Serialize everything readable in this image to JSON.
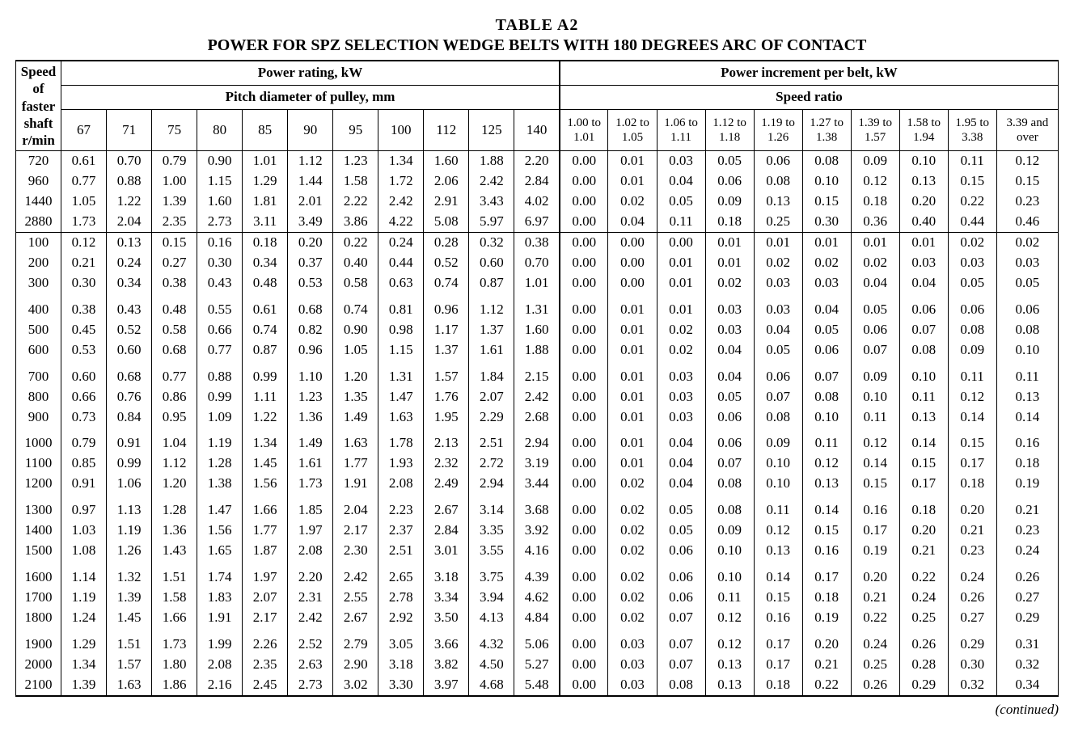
{
  "title": "TABLE   A2",
  "subtitle": "POWER FOR SPZ SELECTION WEDGE BELTS WITH 180 DEGREES ARC OF CONTACT",
  "continued": "(continued)",
  "headers": {
    "speed": "Speed of faster shaft r/min",
    "power_rating": "Power rating, kW",
    "pitch_diameter": "Pitch diameter of pulley, mm",
    "power_increment": "Power increment per belt, kW",
    "speed_ratio": "Speed ratio",
    "pd_cols": [
      "67",
      "71",
      "75",
      "80",
      "85",
      "90",
      "95",
      "100",
      "112",
      "125",
      "140"
    ],
    "ratio_cols": [
      "1.00 to 1.01",
      "1.02 to 1.05",
      "1.06 to 1.11",
      "1.12 to 1.18",
      "1.19 to 1.26",
      "1.27 to 1.38",
      "1.39 to 1.57",
      "1.58 to 1.94",
      "1.95 to 3.38",
      "3.39 and over"
    ]
  },
  "blocks": [
    {
      "section_top": true,
      "rows": [
        {
          "rpm": "720",
          "pd": [
            "0.61",
            "0.70",
            "0.79",
            "0.90",
            "1.01",
            "1.12",
            "1.23",
            "1.34",
            "1.60",
            "1.88",
            "2.20"
          ],
          "inc": [
            "0.00",
            "0.01",
            "0.03",
            "0.05",
            "0.06",
            "0.08",
            "0.09",
            "0.10",
            "0.11",
            "0.12"
          ]
        },
        {
          "rpm": "960",
          "pd": [
            "0.77",
            "0.88",
            "1.00",
            "1.15",
            "1.29",
            "1.44",
            "1.58",
            "1.72",
            "2.06",
            "2.42",
            "2.84"
          ],
          "inc": [
            "0.00",
            "0.01",
            "0.04",
            "0.06",
            "0.08",
            "0.10",
            "0.12",
            "0.13",
            "0.15",
            "0.15"
          ]
        },
        {
          "rpm": "1440",
          "pd": [
            "1.05",
            "1.22",
            "1.39",
            "1.60",
            "1.81",
            "2.01",
            "2.22",
            "2.42",
            "2.91",
            "3.43",
            "4.02"
          ],
          "inc": [
            "0.00",
            "0.02",
            "0.05",
            "0.09",
            "0.13",
            "0.15",
            "0.18",
            "0.20",
            "0.22",
            "0.23"
          ]
        },
        {
          "rpm": "2880",
          "pd": [
            "1.73",
            "2.04",
            "2.35",
            "2.73",
            "3.11",
            "3.49",
            "3.86",
            "4.22",
            "5.08",
            "5.97",
            "6.97"
          ],
          "inc": [
            "0.00",
            "0.04",
            "0.11",
            "0.18",
            "0.25",
            "0.30",
            "0.36",
            "0.40",
            "0.44",
            "0.46"
          ]
        }
      ]
    },
    {
      "section_top": true,
      "rows": [
        {
          "rpm": "100",
          "pd": [
            "0.12",
            "0.13",
            "0.15",
            "0.16",
            "0.18",
            "0.20",
            "0.22",
            "0.24",
            "0.28",
            "0.32",
            "0.38"
          ],
          "inc": [
            "0.00",
            "0.00",
            "0.00",
            "0.01",
            "0.01",
            "0.01",
            "0.01",
            "0.01",
            "0.02",
            "0.02"
          ]
        },
        {
          "rpm": "200",
          "pd": [
            "0.21",
            "0.24",
            "0.27",
            "0.30",
            "0.34",
            "0.37",
            "0.40",
            "0.44",
            "0.52",
            "0.60",
            "0.70"
          ],
          "inc": [
            "0.00",
            "0.00",
            "0.01",
            "0.01",
            "0.02",
            "0.02",
            "0.02",
            "0.03",
            "0.03",
            "0.03"
          ]
        },
        {
          "rpm": "300",
          "pd": [
            "0.30",
            "0.34",
            "0.38",
            "0.43",
            "0.48",
            "0.53",
            "0.58",
            "0.63",
            "0.74",
            "0.87",
            "1.01"
          ],
          "inc": [
            "0.00",
            "0.00",
            "0.01",
            "0.02",
            "0.03",
            "0.03",
            "0.04",
            "0.04",
            "0.05",
            "0.05"
          ]
        }
      ]
    },
    {
      "rows": [
        {
          "rpm": "400",
          "pd": [
            "0.38",
            "0.43",
            "0.48",
            "0.55",
            "0.61",
            "0.68",
            "0.74",
            "0.81",
            "0.96",
            "1.12",
            "1.31"
          ],
          "inc": [
            "0.00",
            "0.01",
            "0.01",
            "0.03",
            "0.03",
            "0.04",
            "0.05",
            "0.06",
            "0.06",
            "0.06"
          ]
        },
        {
          "rpm": "500",
          "pd": [
            "0.45",
            "0.52",
            "0.58",
            "0.66",
            "0.74",
            "0.82",
            "0.90",
            "0.98",
            "1.17",
            "1.37",
            "1.60"
          ],
          "inc": [
            "0.00",
            "0.01",
            "0.02",
            "0.03",
            "0.04",
            "0.05",
            "0.06",
            "0.07",
            "0.08",
            "0.08"
          ]
        },
        {
          "rpm": "600",
          "pd": [
            "0.53",
            "0.60",
            "0.68",
            "0.77",
            "0.87",
            "0.96",
            "1.05",
            "1.15",
            "1.37",
            "1.61",
            "1.88"
          ],
          "inc": [
            "0.00",
            "0.01",
            "0.02",
            "0.04",
            "0.05",
            "0.06",
            "0.07",
            "0.08",
            "0.09",
            "0.10"
          ]
        }
      ]
    },
    {
      "rows": [
        {
          "rpm": "700",
          "pd": [
            "0.60",
            "0.68",
            "0.77",
            "0.88",
            "0.99",
            "1.10",
            "1.20",
            "1.31",
            "1.57",
            "1.84",
            "2.15"
          ],
          "inc": [
            "0.00",
            "0.01",
            "0.03",
            "0.04",
            "0.06",
            "0.07",
            "0.09",
            "0.10",
            "0.11",
            "0.11"
          ]
        },
        {
          "rpm": "800",
          "pd": [
            "0.66",
            "0.76",
            "0.86",
            "0.99",
            "1.11",
            "1.23",
            "1.35",
            "1.47",
            "1.76",
            "2.07",
            "2.42"
          ],
          "inc": [
            "0.00",
            "0.01",
            "0.03",
            "0.05",
            "0.07",
            "0.08",
            "0.10",
            "0.11",
            "0.12",
            "0.13"
          ]
        },
        {
          "rpm": "900",
          "pd": [
            "0.73",
            "0.84",
            "0.95",
            "1.09",
            "1.22",
            "1.36",
            "1.49",
            "1.63",
            "1.95",
            "2.29",
            "2.68"
          ],
          "inc": [
            "0.00",
            "0.01",
            "0.03",
            "0.06",
            "0.08",
            "0.10",
            "0.11",
            "0.13",
            "0.14",
            "0.14"
          ]
        }
      ]
    },
    {
      "rows": [
        {
          "rpm": "1000",
          "pd": [
            "0.79",
            "0.91",
            "1.04",
            "1.19",
            "1.34",
            "1.49",
            "1.63",
            "1.78",
            "2.13",
            "2.51",
            "2.94"
          ],
          "inc": [
            "0.00",
            "0.01",
            "0.04",
            "0.06",
            "0.09",
            "0.11",
            "0.12",
            "0.14",
            "0.15",
            "0.16"
          ]
        },
        {
          "rpm": "1100",
          "pd": [
            "0.85",
            "0.99",
            "1.12",
            "1.28",
            "1.45",
            "1.61",
            "1.77",
            "1.93",
            "2.32",
            "2.72",
            "3.19"
          ],
          "inc": [
            "0.00",
            "0.01",
            "0.04",
            "0.07",
            "0.10",
            "0.12",
            "0.14",
            "0.15",
            "0.17",
            "0.18"
          ]
        },
        {
          "rpm": "1200",
          "pd": [
            "0.91",
            "1.06",
            "1.20",
            "1.38",
            "1.56",
            "1.73",
            "1.91",
            "2.08",
            "2.49",
            "2.94",
            "3.44"
          ],
          "inc": [
            "0.00",
            "0.02",
            "0.04",
            "0.08",
            "0.10",
            "0.13",
            "0.15",
            "0.17",
            "0.18",
            "0.19"
          ]
        }
      ]
    },
    {
      "rows": [
        {
          "rpm": "1300",
          "pd": [
            "0.97",
            "1.13",
            "1.28",
            "1.47",
            "1.66",
            "1.85",
            "2.04",
            "2.23",
            "2.67",
            "3.14",
            "3.68"
          ],
          "inc": [
            "0.00",
            "0.02",
            "0.05",
            "0.08",
            "0.11",
            "0.14",
            "0.16",
            "0.18",
            "0.20",
            "0.21"
          ]
        },
        {
          "rpm": "1400",
          "pd": [
            "1.03",
            "1.19",
            "1.36",
            "1.56",
            "1.77",
            "1.97",
            "2.17",
            "2.37",
            "2.84",
            "3.35",
            "3.92"
          ],
          "inc": [
            "0.00",
            "0.02",
            "0.05",
            "0.09",
            "0.12",
            "0.15",
            "0.17",
            "0.20",
            "0.21",
            "0.23"
          ]
        },
        {
          "rpm": "1500",
          "pd": [
            "1.08",
            "1.26",
            "1.43",
            "1.65",
            "1.87",
            "2.08",
            "2.30",
            "2.51",
            "3.01",
            "3.55",
            "4.16"
          ],
          "inc": [
            "0.00",
            "0.02",
            "0.06",
            "0.10",
            "0.13",
            "0.16",
            "0.19",
            "0.21",
            "0.23",
            "0.24"
          ]
        }
      ]
    },
    {
      "rows": [
        {
          "rpm": "1600",
          "pd": [
            "1.14",
            "1.32",
            "1.51",
            "1.74",
            "1.97",
            "2.20",
            "2.42",
            "2.65",
            "3.18",
            "3.75",
            "4.39"
          ],
          "inc": [
            "0.00",
            "0.02",
            "0.06",
            "0.10",
            "0.14",
            "0.17",
            "0.20",
            "0.22",
            "0.24",
            "0.26"
          ]
        },
        {
          "rpm": "1700",
          "pd": [
            "1.19",
            "1.39",
            "1.58",
            "1.83",
            "2.07",
            "2.31",
            "2.55",
            "2.78",
            "3.34",
            "3.94",
            "4.62"
          ],
          "inc": [
            "0.00",
            "0.02",
            "0.06",
            "0.11",
            "0.15",
            "0.18",
            "0.21",
            "0.24",
            "0.26",
            "0.27"
          ]
        },
        {
          "rpm": "1800",
          "pd": [
            "1.24",
            "1.45",
            "1.66",
            "1.91",
            "2.17",
            "2.42",
            "2.67",
            "2.92",
            "3.50",
            "4.13",
            "4.84"
          ],
          "inc": [
            "0.00",
            "0.02",
            "0.07",
            "0.12",
            "0.16",
            "0.19",
            "0.22",
            "0.25",
            "0.27",
            "0.29"
          ]
        }
      ]
    },
    {
      "last": true,
      "rows": [
        {
          "rpm": "1900",
          "pd": [
            "1.29",
            "1.51",
            "1.73",
            "1.99",
            "2.26",
            "2.52",
            "2.79",
            "3.05",
            "3.66",
            "4.32",
            "5.06"
          ],
          "inc": [
            "0.00",
            "0.03",
            "0.07",
            "0.12",
            "0.17",
            "0.20",
            "0.24",
            "0.26",
            "0.29",
            "0.31"
          ]
        },
        {
          "rpm": "2000",
          "pd": [
            "1.34",
            "1.57",
            "1.80",
            "2.08",
            "2.35",
            "2.63",
            "2.90",
            "3.18",
            "3.82",
            "4.50",
            "5.27"
          ],
          "inc": [
            "0.00",
            "0.03",
            "0.07",
            "0.13",
            "0.17",
            "0.21",
            "0.25",
            "0.28",
            "0.30",
            "0.32"
          ]
        },
        {
          "rpm": "2100",
          "pd": [
            "1.39",
            "1.63",
            "1.86",
            "2.16",
            "2.45",
            "2.73",
            "3.02",
            "3.30",
            "3.97",
            "4.68",
            "5.48"
          ],
          "inc": [
            "0.00",
            "0.03",
            "0.08",
            "0.13",
            "0.18",
            "0.22",
            "0.26",
            "0.29",
            "0.32",
            "0.34"
          ]
        }
      ]
    }
  ]
}
